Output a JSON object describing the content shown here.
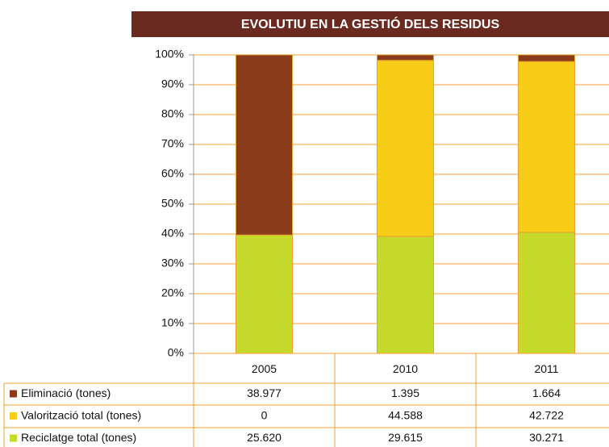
{
  "chart_data": {
    "type": "bar",
    "stack": "percent",
    "title": "EVOLUTIU EN LA GESTIÓ DELS RESIDUS",
    "categories": [
      "2005",
      "2010",
      "2011"
    ],
    "series": [
      {
        "name": "Eliminació (tones)",
        "color": "#8b3c1a",
        "values": [
          38977,
          1395,
          1664
        ],
        "value_labels": [
          "38.977",
          "1.395",
          "1.664"
        ]
      },
      {
        "name": "Valorització total (tones)",
        "color": "#f7cd18",
        "values": [
          0,
          44588,
          42722
        ],
        "value_labels": [
          "0",
          "44.588",
          "42.722"
        ]
      },
      {
        "name": "Reciclatge total (tones)",
        "color": "#c6da2c",
        "values": [
          25620,
          29615,
          30271
        ],
        "value_labels": [
          "25.620",
          "29.615",
          "30.271"
        ]
      }
    ],
    "ylim": [
      0,
      100
    ],
    "yticks": [
      {
        "value": 0,
        "label": "0%"
      },
      {
        "value": 10,
        "label": "10%"
      },
      {
        "value": 20,
        "label": "20%"
      },
      {
        "value": 30,
        "label": "30%"
      },
      {
        "value": 40,
        "label": "40%"
      },
      {
        "value": 50,
        "label": "50%"
      },
      {
        "value": 60,
        "label": "60%"
      },
      {
        "value": 70,
        "label": "70%"
      },
      {
        "value": 80,
        "label": "80%"
      },
      {
        "value": 90,
        "label": "90%"
      },
      {
        "value": 100,
        "label": "100%"
      }
    ],
    "grid": true
  }
}
